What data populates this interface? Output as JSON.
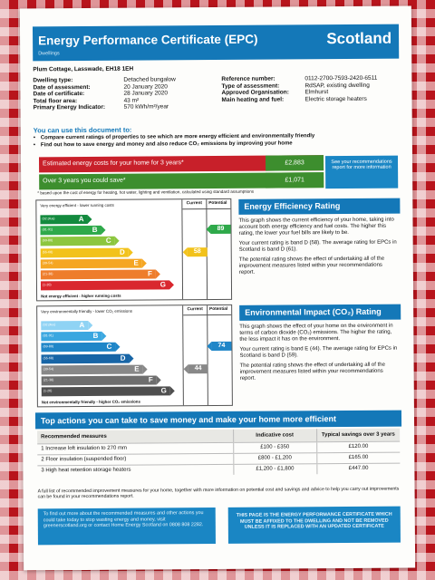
{
  "header": {
    "title": "Energy Performance Certificate (EPC)",
    "region": "Scotland",
    "subtitle": "Dwellings"
  },
  "address": "Plum Cottage, Lasswade, EH18 1EH",
  "details_left": [
    {
      "k": "Dwelling type:",
      "v": "Detached bungalow"
    },
    {
      "k": "Date of assessment:",
      "v": "20 January 2020"
    },
    {
      "k": "Date of certificate:",
      "v": "28 January 2020"
    },
    {
      "k": "Total floor area:",
      "v": "43 m²"
    },
    {
      "k": "Primary Energy Indicator:",
      "v": "570 kWh/m²/year"
    }
  ],
  "details_right": [
    {
      "k": "Reference number:",
      "v": "0112-2700-7593-2420-6511"
    },
    {
      "k": "Type of assessment:",
      "v": "RdSAP, existing dwelling"
    },
    {
      "k": "Approved Organisation:",
      "v": "Elmhurst"
    },
    {
      "k": "Main heating and fuel:",
      "v": "Electric storage heaters"
    }
  ],
  "use_title": "You can use this document to:",
  "use_bullets": [
    "Compare current ratings of properties to see which are more energy efficient and environmentally friendly",
    "Find out how to save energy and money and also reduce CO₂ emissions by improving your home"
  ],
  "costs": [
    {
      "label": "Estimated energy costs for your home for 3 years*",
      "value": "£2,883",
      "color": "#c8202a"
    },
    {
      "label": "Over 3 years you could save*",
      "value": "£1,071",
      "color": "#3d8e2e"
    }
  ],
  "see_box": "See your recommendations report for more information",
  "cost_footnote": "* based upon the cost of energy for heating, hot water, lighting and ventilation, calculated using standard assumptions",
  "ee_chart": {
    "top_label": "Very energy efficient - lower running costs",
    "bottom_label": "Not energy efficient - higher running costs",
    "current_header": "Current",
    "potential_header": "Potential",
    "bands": [
      {
        "range": "(92 plus)",
        "letter": "A",
        "color": "#138a3e"
      },
      {
        "range": "(81-91)",
        "letter": "B",
        "color": "#2ea94a"
      },
      {
        "range": "(69-80)",
        "letter": "C",
        "color": "#8cc63f"
      },
      {
        "range": "(55-68)",
        "letter": "D",
        "color": "#f2c21b"
      },
      {
        "range": "(39-54)",
        "letter": "E",
        "color": "#f5a623"
      },
      {
        "range": "(21-38)",
        "letter": "F",
        "color": "#ee7d2c"
      },
      {
        "range": "(1-20)",
        "letter": "G",
        "color": "#d9272e"
      }
    ],
    "current": {
      "value": "58",
      "band": 3,
      "color": "#f2c21b"
    },
    "potential": {
      "value": "89",
      "band": 1,
      "color": "#2ea94a"
    }
  },
  "ei_chart": {
    "top_label": "Very environmentally friendly - lower CO₂ emissions",
    "bottom_label": "Not environmentally friendly - higher CO₂ emissions",
    "current_header": "Current",
    "potential_header": "Potential",
    "bands": [
      {
        "range": "(92 plus)",
        "letter": "A",
        "color": "#8fd3f4"
      },
      {
        "range": "(81-91)",
        "letter": "B",
        "color": "#3aa7e0"
      },
      {
        "range": "(69-80)",
        "letter": "C",
        "color": "#1f86c8"
      },
      {
        "range": "(55-68)",
        "letter": "D",
        "color": "#1765a6"
      },
      {
        "range": "(39-54)",
        "letter": "E",
        "color": "#888888"
      },
      {
        "range": "(21-38)",
        "letter": "F",
        "color": "#6e6e6e"
      },
      {
        "range": "(1-20)",
        "letter": "G",
        "color": "#4f4f4f"
      }
    ],
    "current": {
      "value": "44",
      "band": 4,
      "color": "#888888"
    },
    "potential": {
      "value": "74",
      "band": 2,
      "color": "#1f86c8"
    }
  },
  "ee_panel": {
    "title": "Energy Efficiency Rating",
    "paras": [
      "This graph shows the current efficiency of your home, taking into account both energy efficiency and fuel costs. The higher this rating, the lower your fuel bills are likely to be.",
      "Your current rating is band D (58). The average rating for EPCs in Scotland is band D (61).",
      "The potential rating shows the effect of undertaking all of the improvement measures listed within your recommendations report."
    ]
  },
  "ei_panel": {
    "title": "Environmental Impact (CO₂) Rating",
    "paras": [
      "This graph shows the effect of your home on the environment in terms of carbon dioxide (CO₂) emissions. The higher the rating, the less impact it has on the environment.",
      "Your current rating is band E (44). The average rating for EPCs in Scotland is band D (59).",
      "The potential rating shows the effect of undertaking all of the improvement measures listed within your recommendations report."
    ]
  },
  "top_actions": {
    "title": "Top actions you can take to save money and make your home more efficient",
    "headers": [
      "Recommended measures",
      "Indicative cost",
      "Typical savings over 3 years"
    ],
    "rows": [
      [
        "1 Increase loft insulation to 270 mm",
        "£100 - £350",
        "£120.00"
      ],
      [
        "2 Floor insulation (suspended floor)",
        "£800 - £1,200",
        "£165.00"
      ],
      [
        "3 High heat retention storage heaters",
        "£1,200 - £1,800",
        "£447.00"
      ]
    ]
  },
  "recommend_note": "A full list of recommended improvement measures for your home, together with more information on potential cost and savings and advice to help you carry out improvements can be found in your recommendations report.",
  "bottom_left": "To find out more about the recommended measures and other actions you could take today to stop wasting energy and money, visit greenerscotland.org or contact Home Energy Scotland on 0808 808 2282.",
  "bottom_right": "THIS PAGE IS THE ENERGY PERFORMANCE CERTIFICATE WHICH MUST BE AFFIXED TO THE DWELLING AND NOT BE REMOVED UNLESS IT IS REPLACED WITH AN UPDATED CERTIFICATE",
  "colors": {
    "header_blue": "#1478b8",
    "box_blue": "#1a86c4",
    "cost_red": "#c8202a",
    "save_green": "#3d8e2e",
    "tablecloth_red": "#b8141c"
  }
}
